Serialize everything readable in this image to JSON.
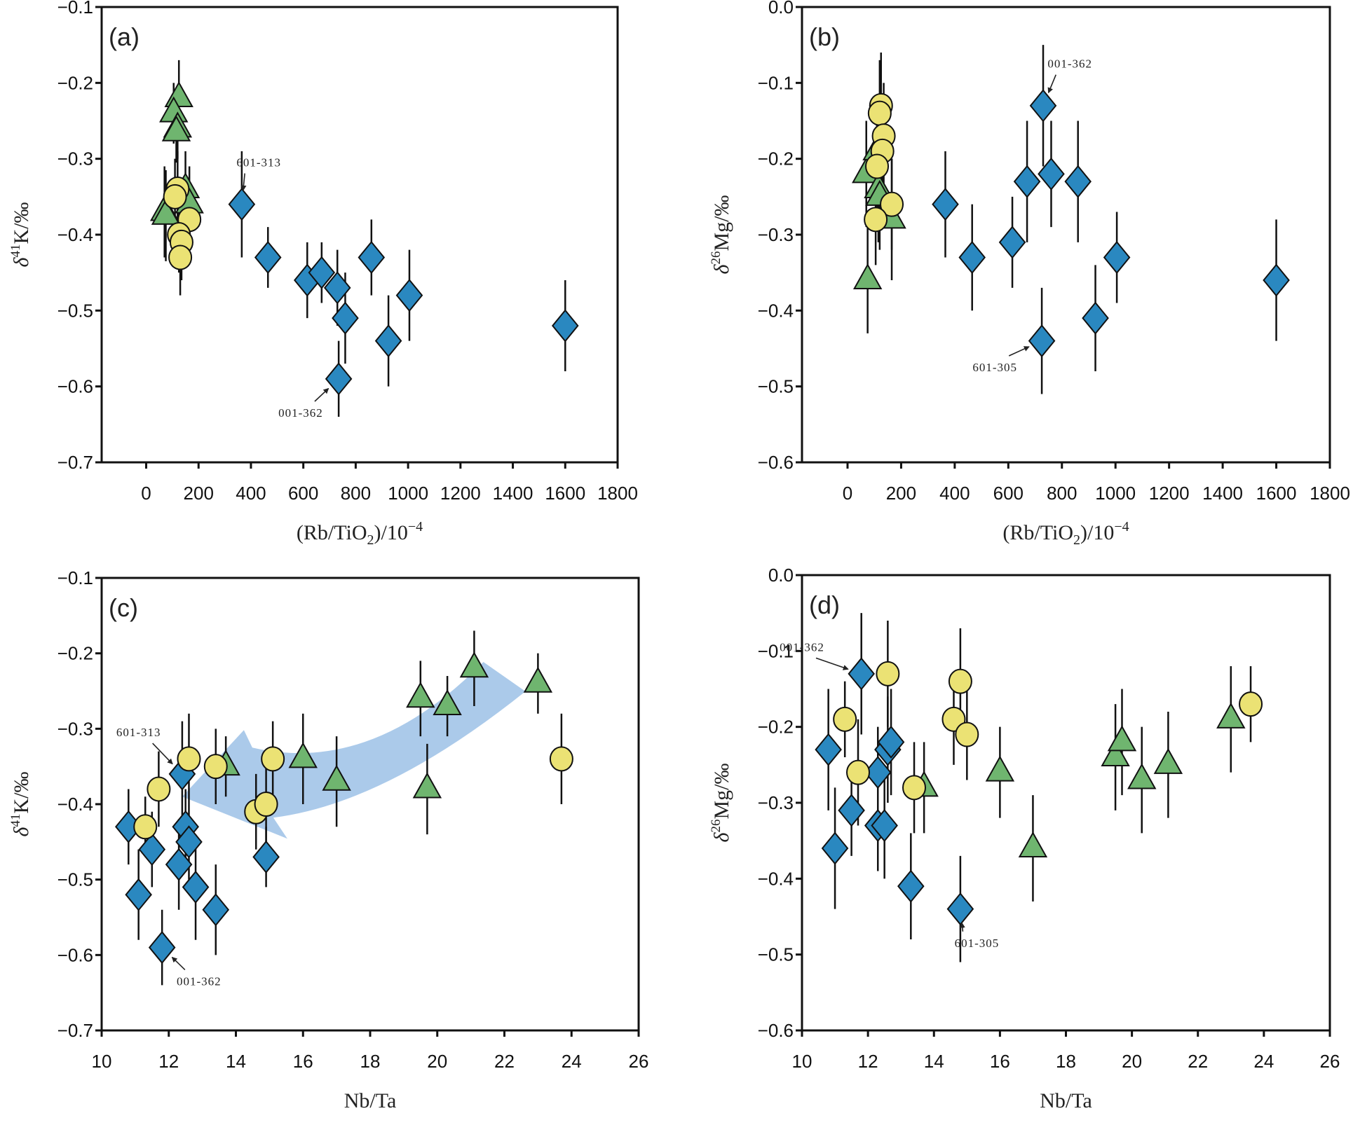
{
  "colors": {
    "diamond": "#2a88c0",
    "triangle": "#6fb56f",
    "circle": "#ebe274",
    "arrow_band": "#a7c7e9",
    "outline": "#111111"
  },
  "chart_data": [
    {
      "id": "a",
      "type": "scatter",
      "panel_label": "(a)",
      "xlabel": "(Rb/TiO2)/10^-4",
      "ylabel": "δ41K/‰",
      "xlim": [
        -170,
        1800
      ],
      "ylim": [
        -0.7,
        -0.1
      ],
      "xticks": [
        0,
        200,
        400,
        600,
        800,
        1000,
        1200,
        1400,
        1600,
        1800
      ],
      "yticks": [
        -0.7,
        -0.6,
        -0.5,
        -0.4,
        -0.3,
        -0.2,
        -0.1
      ],
      "grid": false,
      "series": [
        {
          "name": "diamond",
          "marker": "diamond",
          "points": [
            {
              "x": 365,
              "y": -0.36,
              "err": 0.07
            },
            {
              "x": 465,
              "y": -0.43,
              "err": 0.04
            },
            {
              "x": 615,
              "y": -0.46,
              "err": 0.05
            },
            {
              "x": 670,
              "y": -0.45,
              "err": 0.04
            },
            {
              "x": 730,
              "y": -0.47,
              "err": 0.05
            },
            {
              "x": 760,
              "y": -0.51,
              "err": 0.06
            },
            {
              "x": 735,
              "y": -0.59,
              "err": 0.05
            },
            {
              "x": 860,
              "y": -0.43,
              "err": 0.05
            },
            {
              "x": 925,
              "y": -0.54,
              "err": 0.06
            },
            {
              "x": 1005,
              "y": -0.48,
              "err": 0.06
            },
            {
              "x": 1600,
              "y": -0.52,
              "err": 0.06
            }
          ]
        },
        {
          "name": "triangle",
          "marker": "triangle",
          "points": [
            {
              "x": 125,
              "y": -0.22,
              "err": 0.05
            },
            {
              "x": 105,
              "y": -0.24,
              "err": 0.04
            },
            {
              "x": 120,
              "y": -0.26,
              "err": 0.04
            },
            {
              "x": 115,
              "y": -0.265,
              "err": 0.04
            },
            {
              "x": 150,
              "y": -0.34,
              "err": 0.05
            },
            {
              "x": 165,
              "y": -0.36,
              "err": 0.05
            },
            {
              "x": 70,
              "y": -0.37,
              "err": 0.06
            },
            {
              "x": 75,
              "y": -0.375,
              "err": 0.06
            }
          ]
        },
        {
          "name": "circle",
          "marker": "circle",
          "points": [
            {
              "x": 120,
              "y": -0.34,
              "err": 0.05
            },
            {
              "x": 110,
              "y": -0.35,
              "err": 0.05
            },
            {
              "x": 165,
              "y": -0.38,
              "err": 0.05
            },
            {
              "x": 125,
              "y": -0.4,
              "err": 0.05
            },
            {
              "x": 135,
              "y": -0.41,
              "err": 0.05
            },
            {
              "x": 130,
              "y": -0.43,
              "err": 0.05
            }
          ]
        }
      ],
      "annotations": [
        {
          "text": "601-313",
          "target": [
            365,
            -0.36
          ],
          "label_at": [
            430,
            -0.31
          ]
        },
        {
          "text": "001-362",
          "target": [
            735,
            -0.59
          ],
          "label_at": [
            590,
            -0.64
          ]
        }
      ]
    },
    {
      "id": "b",
      "type": "scatter",
      "panel_label": "(b)",
      "xlabel": "(Rb/TiO2)/10^-4",
      "ylabel": "δ26Mg/‰",
      "xlim": [
        -170,
        1800
      ],
      "ylim": [
        -0.6,
        0.0
      ],
      "xticks": [
        0,
        200,
        400,
        600,
        800,
        1000,
        1200,
        1400,
        1600,
        1800
      ],
      "yticks": [
        -0.6,
        -0.5,
        -0.4,
        -0.3,
        -0.2,
        -0.1,
        0.0
      ],
      "grid": false,
      "series": [
        {
          "name": "diamond",
          "marker": "diamond",
          "points": [
            {
              "x": 365,
              "y": -0.26,
              "err": 0.07
            },
            {
              "x": 465,
              "y": -0.33,
              "err": 0.07
            },
            {
              "x": 615,
              "y": -0.31,
              "err": 0.06
            },
            {
              "x": 670,
              "y": -0.23,
              "err": 0.08
            },
            {
              "x": 730,
              "y": -0.13,
              "err": 0.08
            },
            {
              "x": 760,
              "y": -0.22,
              "err": 0.07
            },
            {
              "x": 725,
              "y": -0.44,
              "err": 0.07
            },
            {
              "x": 860,
              "y": -0.23,
              "err": 0.08
            },
            {
              "x": 925,
              "y": -0.41,
              "err": 0.07
            },
            {
              "x": 1005,
              "y": -0.33,
              "err": 0.06
            },
            {
              "x": 1600,
              "y": -0.36,
              "err": 0.08
            }
          ]
        },
        {
          "name": "triangle",
          "marker": "triangle",
          "points": [
            {
              "x": 70,
              "y": -0.22,
              "err": 0.07
            },
            {
              "x": 110,
              "y": -0.19,
              "err": 0.07
            },
            {
              "x": 115,
              "y": -0.24,
              "err": 0.07
            },
            {
              "x": 120,
              "y": -0.25,
              "err": 0.07
            },
            {
              "x": 165,
              "y": -0.28,
              "err": 0.08
            },
            {
              "x": 75,
              "y": -0.36,
              "err": 0.07
            }
          ]
        },
        {
          "name": "circle",
          "marker": "circle",
          "points": [
            {
              "x": 125,
              "y": -0.13,
              "err": 0.07
            },
            {
              "x": 120,
              "y": -0.14,
              "err": 0.07
            },
            {
              "x": 135,
              "y": -0.17,
              "err": 0.07
            },
            {
              "x": 130,
              "y": -0.19,
              "err": 0.06
            },
            {
              "x": 110,
              "y": -0.21,
              "err": 0.06
            },
            {
              "x": 165,
              "y": -0.26,
              "err": 0.06
            },
            {
              "x": 105,
              "y": -0.28,
              "err": 0.06
            }
          ]
        }
      ],
      "annotations": [
        {
          "text": "001-362",
          "target": [
            730,
            -0.13
          ],
          "label_at": [
            830,
            -0.08
          ]
        },
        {
          "text": "601-305",
          "target": [
            725,
            -0.44
          ],
          "label_at": [
            550,
            -0.48
          ]
        }
      ]
    },
    {
      "id": "c",
      "type": "scatter",
      "panel_label": "(c)",
      "xlabel": "Nb/Ta",
      "ylabel": "δ41K/‰",
      "xlim": [
        10,
        26
      ],
      "ylim": [
        -0.7,
        -0.1
      ],
      "xticks": [
        10,
        12,
        14,
        16,
        18,
        20,
        22,
        24,
        26
      ],
      "yticks": [
        -0.7,
        -0.6,
        -0.5,
        -0.4,
        -0.3,
        -0.2,
        -0.1
      ],
      "grid": false,
      "series": [
        {
          "name": "diamond",
          "marker": "diamond",
          "points": [
            {
              "x": 10.8,
              "y": -0.43,
              "err": 0.05
            },
            {
              "x": 11.1,
              "y": -0.52,
              "err": 0.06
            },
            {
              "x": 11.5,
              "y": -0.46,
              "err": 0.05
            },
            {
              "x": 11.8,
              "y": -0.59,
              "err": 0.05
            },
            {
              "x": 12.3,
              "y": -0.48,
              "err": 0.06
            },
            {
              "x": 12.4,
              "y": -0.36,
              "err": 0.07
            },
            {
              "x": 12.5,
              "y": -0.43,
              "err": 0.05
            },
            {
              "x": 12.6,
              "y": -0.45,
              "err": 0.05
            },
            {
              "x": 12.8,
              "y": -0.51,
              "err": 0.07
            },
            {
              "x": 13.4,
              "y": -0.54,
              "err": 0.06
            },
            {
              "x": 14.9,
              "y": -0.47,
              "err": 0.04
            }
          ]
        },
        {
          "name": "triangle",
          "marker": "triangle",
          "points": [
            {
              "x": 13.7,
              "y": -0.35,
              "err": 0.04
            },
            {
              "x": 16.0,
              "y": -0.34,
              "err": 0.06
            },
            {
              "x": 17.0,
              "y": -0.37,
              "err": 0.06
            },
            {
              "x": 19.5,
              "y": -0.26,
              "err": 0.05
            },
            {
              "x": 19.7,
              "y": -0.38,
              "err": 0.06
            },
            {
              "x": 20.3,
              "y": -0.27,
              "err": 0.04
            },
            {
              "x": 21.1,
              "y": -0.22,
              "err": 0.05
            },
            {
              "x": 23.0,
              "y": -0.24,
              "err": 0.04
            }
          ]
        },
        {
          "name": "circle",
          "marker": "circle",
          "points": [
            {
              "x": 11.3,
              "y": -0.43,
              "err": 0.04
            },
            {
              "x": 11.7,
              "y": -0.38,
              "err": 0.05
            },
            {
              "x": 12.6,
              "y": -0.34,
              "err": 0.06
            },
            {
              "x": 13.4,
              "y": -0.35,
              "err": 0.05
            },
            {
              "x": 14.6,
              "y": -0.41,
              "err": 0.05
            },
            {
              "x": 14.9,
              "y": -0.4,
              "err": 0.06
            },
            {
              "x": 15.1,
              "y": -0.34,
              "err": 0.05
            },
            {
              "x": 23.7,
              "y": -0.34,
              "err": 0.06
            }
          ]
        }
      ],
      "trend_arrow": {
        "from": [
          22.0,
          -0.23
        ],
        "to": [
          12.4,
          -0.39
        ],
        "color": "#a7c7e9"
      },
      "annotations": [
        {
          "text": "601-313",
          "target": [
            12.4,
            -0.36
          ],
          "label_at": [
            11.1,
            -0.31
          ]
        },
        {
          "text": "001-362",
          "target": [
            11.8,
            -0.59
          ],
          "label_at": [
            12.9,
            -0.64
          ]
        }
      ]
    },
    {
      "id": "d",
      "type": "scatter",
      "panel_label": "(d)",
      "xlabel": "Nb/Ta",
      "ylabel": "δ26Mg/‰",
      "xlim": [
        10,
        26
      ],
      "ylim": [
        -0.6,
        0.0
      ],
      "xticks": [
        10,
        12,
        14,
        16,
        18,
        20,
        22,
        24,
        26
      ],
      "yticks": [
        -0.6,
        -0.5,
        -0.4,
        -0.3,
        -0.2,
        -0.1,
        0.0
      ],
      "grid": false,
      "series": [
        {
          "name": "diamond",
          "marker": "diamond",
          "points": [
            {
              "x": 10.8,
              "y": -0.23,
              "err": 0.08
            },
            {
              "x": 11.0,
              "y": -0.36,
              "err": 0.08
            },
            {
              "x": 11.5,
              "y": -0.31,
              "err": 0.06
            },
            {
              "x": 11.8,
              "y": -0.13,
              "err": 0.08
            },
            {
              "x": 12.3,
              "y": -0.26,
              "err": 0.06
            },
            {
              "x": 12.3,
              "y": -0.33,
              "err": 0.06
            },
            {
              "x": 12.5,
              "y": -0.33,
              "err": 0.07
            },
            {
              "x": 12.6,
              "y": -0.23,
              "err": 0.07
            },
            {
              "x": 12.7,
              "y": -0.22,
              "err": 0.07
            },
            {
              "x": 13.3,
              "y": -0.41,
              "err": 0.07
            },
            {
              "x": 14.8,
              "y": -0.44,
              "err": 0.07
            }
          ]
        },
        {
          "name": "triangle",
          "marker": "triangle",
          "points": [
            {
              "x": 13.7,
              "y": -0.28,
              "err": 0.06
            },
            {
              "x": 16.0,
              "y": -0.26,
              "err": 0.06
            },
            {
              "x": 17.0,
              "y": -0.36,
              "err": 0.07
            },
            {
              "x": 19.5,
              "y": -0.24,
              "err": 0.07
            },
            {
              "x": 19.7,
              "y": -0.22,
              "err": 0.07
            },
            {
              "x": 20.3,
              "y": -0.27,
              "err": 0.07
            },
            {
              "x": 21.1,
              "y": -0.25,
              "err": 0.07
            },
            {
              "x": 23.0,
              "y": -0.19,
              "err": 0.07
            }
          ]
        },
        {
          "name": "circle",
          "marker": "circle",
          "points": [
            {
              "x": 11.3,
              "y": -0.19,
              "err": 0.05
            },
            {
              "x": 11.7,
              "y": -0.26,
              "err": 0.07
            },
            {
              "x": 12.6,
              "y": -0.13,
              "err": 0.07
            },
            {
              "x": 13.4,
              "y": -0.28,
              "err": 0.06
            },
            {
              "x": 14.6,
              "y": -0.19,
              "err": 0.06
            },
            {
              "x": 14.8,
              "y": -0.14,
              "err": 0.07
            },
            {
              "x": 15.0,
              "y": -0.21,
              "err": 0.06
            },
            {
              "x": 23.6,
              "y": -0.17,
              "err": 0.05
            }
          ]
        }
      ],
      "annotations": [
        {
          "text": "001-362",
          "target": [
            11.8,
            -0.13
          ],
          "label_at": [
            10.0,
            -0.1
          ]
        },
        {
          "text": "601-305",
          "target": [
            14.8,
            -0.44
          ],
          "label_at": [
            15.3,
            -0.49
          ]
        }
      ]
    }
  ]
}
